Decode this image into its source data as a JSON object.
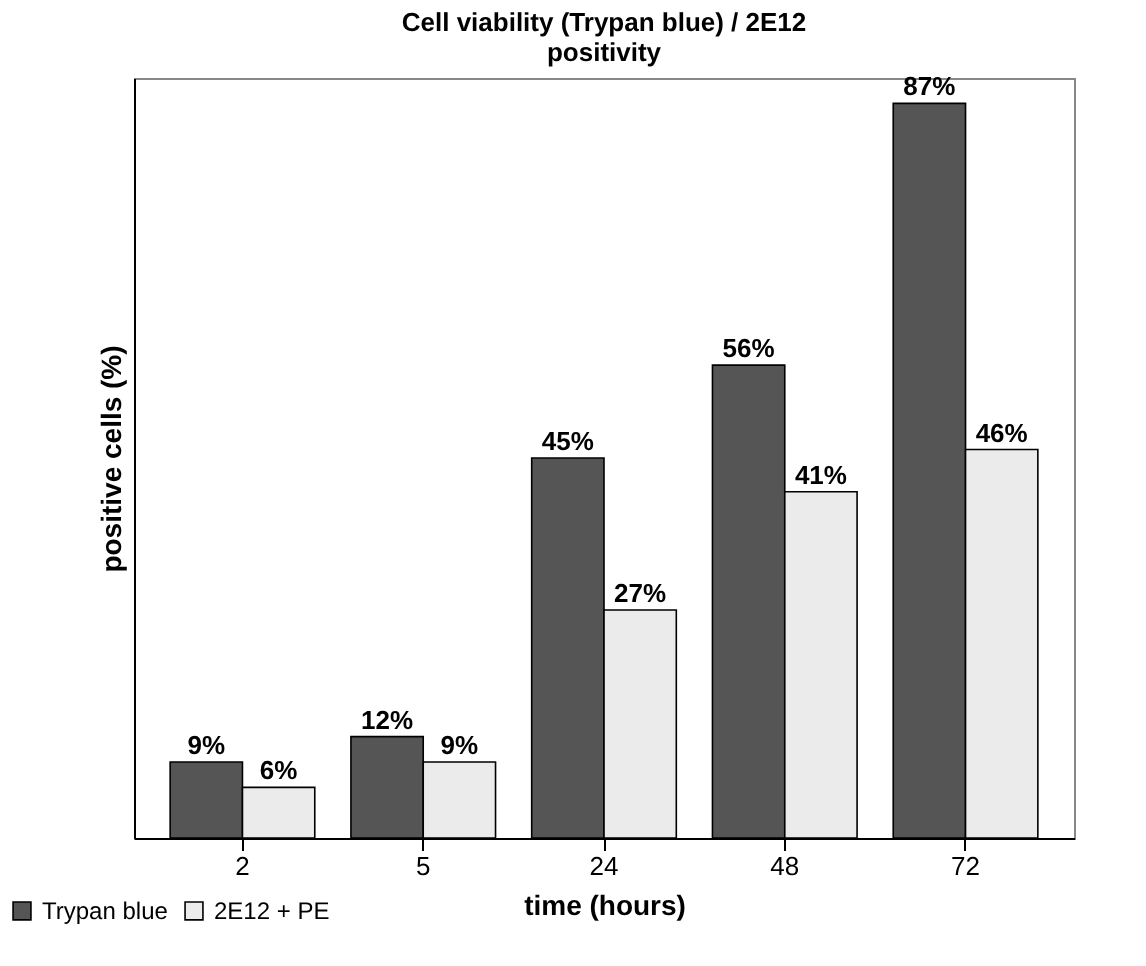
{
  "chart_data": {
    "type": "bar",
    "title": [
      "Cell viability (Trypan blue) / 2E12",
      "positivity"
    ],
    "xlabel": "time (hours)",
    "ylabel": "positive cells (%)",
    "categories": [
      "2",
      "5",
      "24",
      "48",
      "72"
    ],
    "series": [
      {
        "name": "Trypan blue",
        "color": "#555555",
        "values": [
          9,
          12,
          45,
          56,
          87
        ],
        "value_labels": [
          "9%",
          "12%",
          "45%",
          "56%",
          "87%"
        ]
      },
      {
        "name": "2E12 + PE",
        "color": "#ebebeb",
        "values": [
          6,
          9,
          27,
          41,
          46
        ],
        "value_labels": [
          "6%",
          "9%",
          "27%",
          "41%",
          "46%"
        ]
      }
    ],
    "legend": "bottom left",
    "grid": false
  }
}
